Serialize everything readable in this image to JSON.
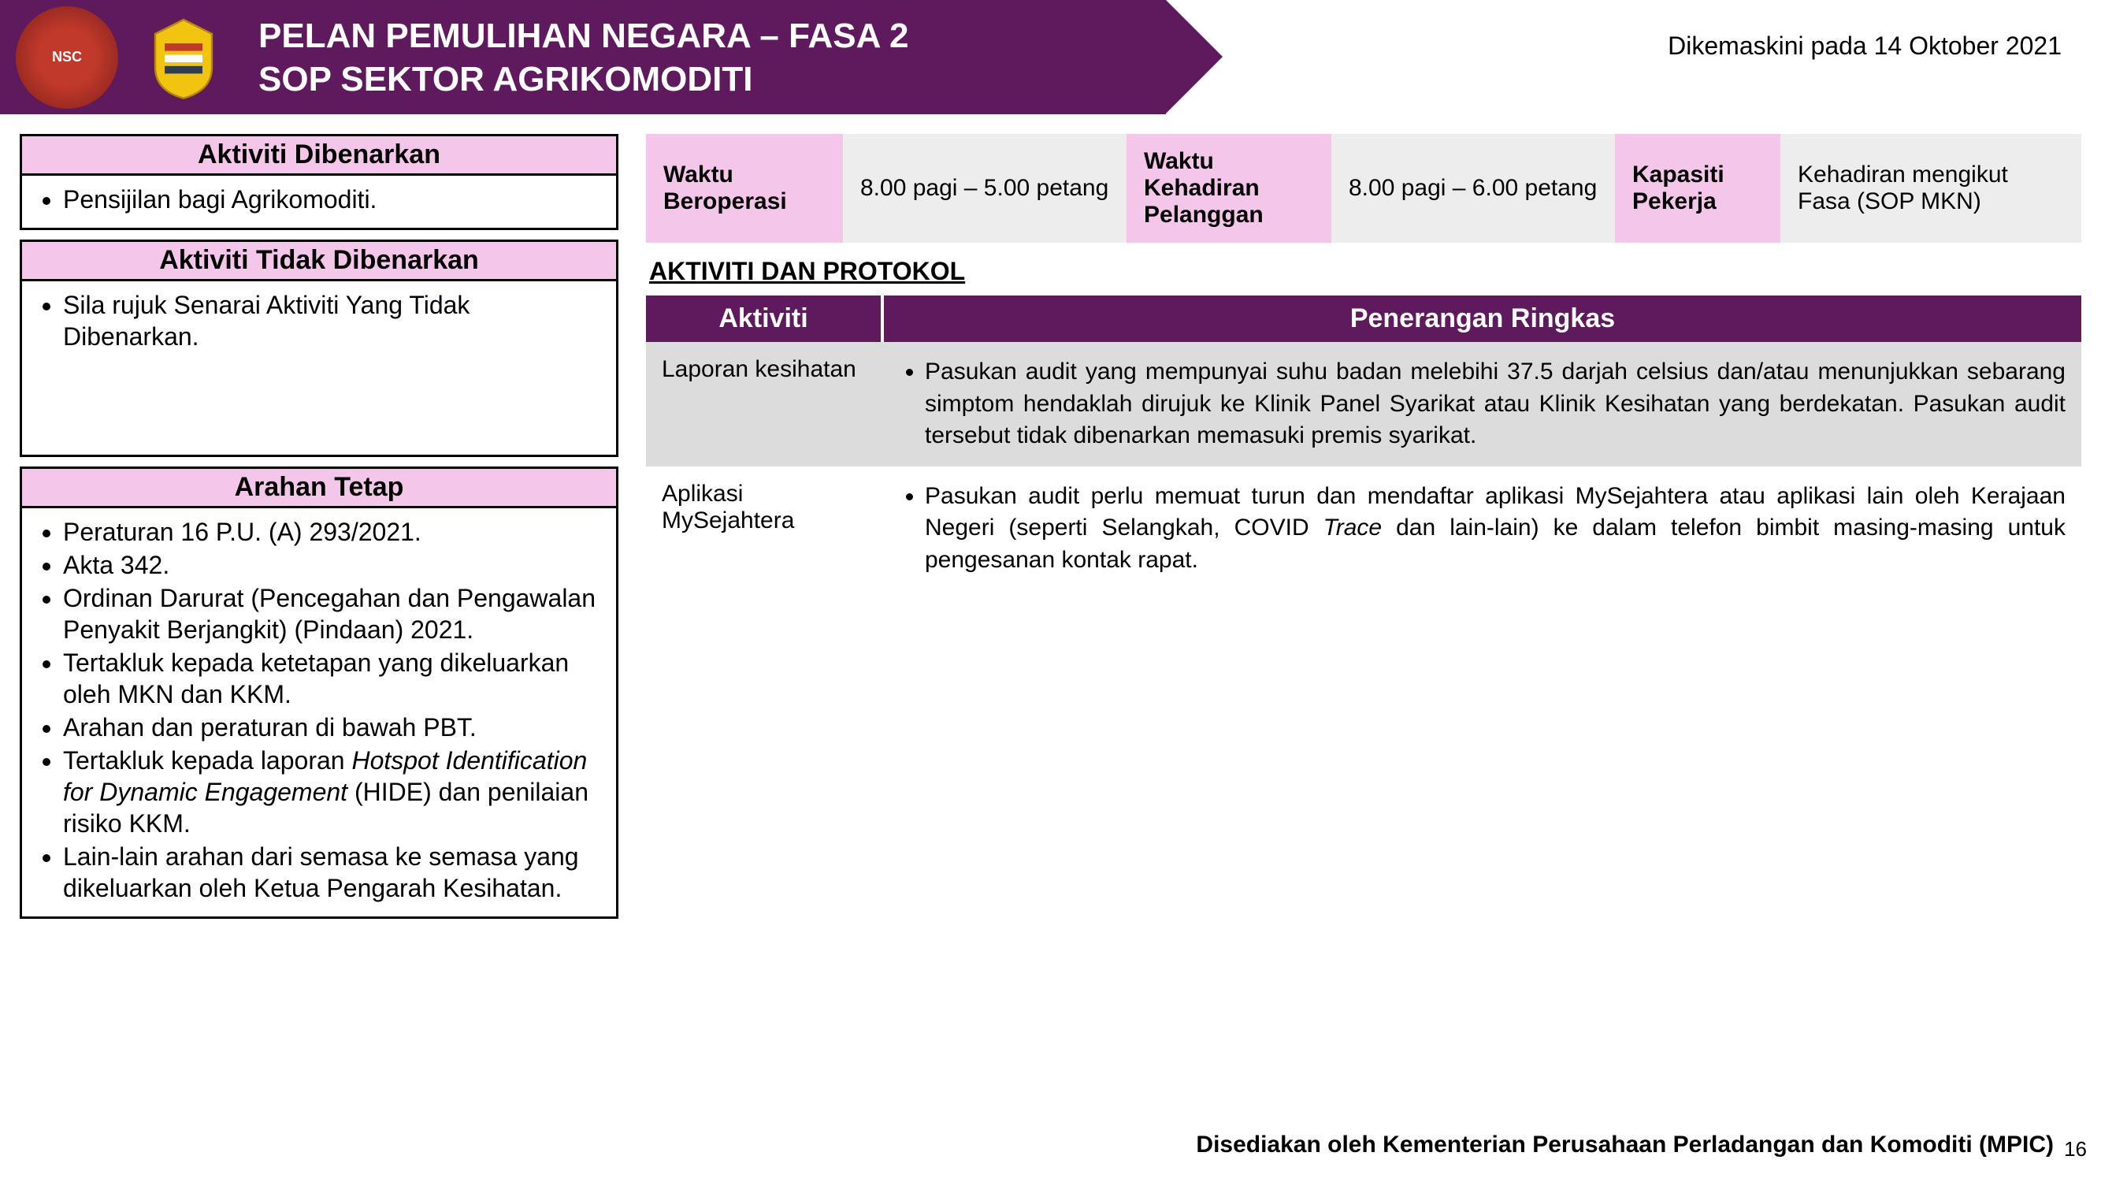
{
  "colors": {
    "banner": "#5e1a5c",
    "pink_header": "#f4c7ea",
    "grey_light": "#ededed",
    "grey_row": "#dcdcdc",
    "text": "#000000",
    "white": "#ffffff"
  },
  "header": {
    "title1": "PELAN PEMULIHAN NEGARA – FASA 2",
    "title2": "SOP SEKTOR AGRIKOMODITI",
    "updated": "Dikemaskini pada 14 Oktober 2021",
    "logo1_text": "NSC",
    "logo2_alt": "Jata Negara"
  },
  "left": {
    "allowed_title": "Aktiviti Dibenarkan",
    "allowed_items": [
      "Pensijilan bagi Agrikomoditi."
    ],
    "not_allowed_title": "Aktiviti Tidak Dibenarkan",
    "not_allowed_items": [
      "Sila rujuk Senarai Aktiviti Yang Tidak Dibenarkan."
    ],
    "standing_title": "Arahan Tetap",
    "standing_items_html": [
      "Peraturan 16 P.U. (A) 293/2021.",
      "Akta 342.",
      "Ordinan Darurat (Pencegahan dan Pengawalan Penyakit Berjangkit) (Pindaan) 2021.",
      "Tertakluk kepada ketetapan yang dikeluarkan oleh MKN dan KKM.",
      "Arahan dan peraturan di bawah  PBT.",
      "Tertakluk kepada laporan <span class=\"italic\">Hotspot Identification for Dynamic Engagement</span> (HIDE) dan penilaian risiko KKM.",
      "Lain-lain arahan dari semasa ke semasa yang dikeluarkan oleh Ketua Pengarah Kesihatan."
    ]
  },
  "info": {
    "l1": "Waktu Beroperasi",
    "v1": "8.00 pagi – 5.00 petang",
    "l2": "Waktu Kehadiran Pelanggan",
    "v2": "8.00 pagi – 6.00 petang",
    "l3": "Kapasiti Pekerja",
    "v3": "Kehadiran mengikut Fasa (SOP MKN)"
  },
  "protocol": {
    "section_title": "AKTIVITI DAN PROTOKOL",
    "col1": "Aktiviti",
    "col2": "Penerangan Ringkas",
    "rows": [
      {
        "activity": "Laporan kesihatan",
        "desc_html": "Pasukan audit yang mempunyai suhu badan melebihi  37.5 darjah celsius dan/atau menunjukkan sebarang simptom hendaklah dirujuk ke Klinik Panel Syarikat atau Klinik Kesihatan yang berdekatan. Pasukan audit  tersebut tidak dibenarkan memasuki premis syarikat."
      },
      {
        "activity": "Aplikasi MySejahtera",
        "desc_html": "Pasukan audit perlu memuat turun dan mendaftar aplikasi MySejahtera atau aplikasi lain oleh Kerajaan Negeri (seperti Selangkah, COVID <span class=\"italic\">Trace</span> dan lain-lain) ke dalam telefon bimbit masing-masing untuk pengesanan kontak rapat."
      }
    ]
  },
  "footer": {
    "text": "Disediakan oleh Kementerian Perusahaan Perladangan dan Komoditi (MPIC)",
    "page": "16"
  }
}
